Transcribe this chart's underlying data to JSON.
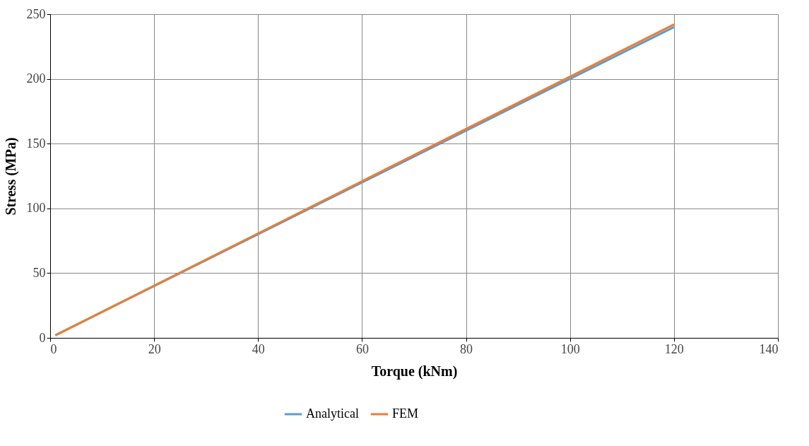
{
  "chart_data": {
    "type": "line",
    "xlabel": "Torque (kNm)",
    "ylabel": "Stress (MPa)",
    "xlim": [
      0,
      140
    ],
    "xticks": [
      0,
      20,
      40,
      60,
      80,
      100,
      120,
      140
    ],
    "ylim": [
      0,
      250
    ],
    "yticks": [
      0,
      50,
      100,
      150,
      200,
      250
    ],
    "grid": true,
    "legend": "bottom",
    "line_style": "solid",
    "x": [
      1,
      120
    ],
    "series": [
      {
        "name": "Analytical",
        "color": "#5b9bd5",
        "values": [
          2,
          240
        ]
      },
      {
        "name": "FEM",
        "color": "#ed7d31",
        "values": [
          2,
          242
        ]
      }
    ]
  }
}
